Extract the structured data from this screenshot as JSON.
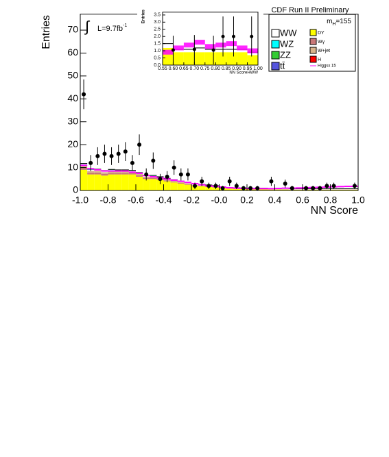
{
  "chart_data": [
    {
      "type": "histogram",
      "x_label": "NN Score",
      "y_label": "Entries",
      "header": "CDF Run II Preliminary",
      "mass_label": {
        "text": "m",
        "sub": "H",
        "rest": "=155"
      },
      "lumi": {
        "symbol": "∫",
        "text": "L=9.7fb",
        "sup": "-1"
      },
      "xlim": [
        -1,
        1
      ],
      "ylim": [
        0,
        77
      ],
      "xticks": [
        {
          "value": -1,
          "label": "-1.0"
        },
        {
          "value": -0.8,
          "label": "-0.8"
        },
        {
          "value": -0.6,
          "label": "-0.6"
        },
        {
          "value": -0.4,
          "label": "-0.4"
        },
        {
          "value": -0.2,
          "label": "-0.2"
        },
        {
          "value": 0,
          "label": "-0.0"
        },
        {
          "value": 0.2,
          "label": "0.2"
        },
        {
          "value": 0.4,
          "label": "0.4"
        },
        {
          "value": 0.6,
          "label": "0.6"
        },
        {
          "value": 0.8,
          "label": "0.8"
        },
        {
          "value": 1,
          "label": "1.0"
        }
      ],
      "yticks": [
        0,
        10,
        20,
        30,
        40,
        50,
        60,
        70
      ],
      "bins": [
        -1,
        -0.95,
        -0.9,
        -0.85,
        -0.8,
        -0.75,
        -0.7,
        -0.65,
        -0.6,
        -0.55,
        -0.5,
        -0.45,
        -0.4,
        -0.35,
        -0.3,
        -0.25,
        -0.2,
        -0.15,
        -0.1,
        -0.05,
        0,
        0.05,
        0.1,
        0.15,
        0.2,
        0.25,
        0.3,
        0.35,
        0.4,
        0.45,
        0.5,
        0.55,
        0.6,
        0.65,
        0.7,
        0.75,
        0.8,
        0.85,
        0.9,
        0.95,
        1
      ],
      "series": [
        {
          "name": "DY",
          "color": "#ffff00",
          "values": [
            9,
            7,
            7,
            6.5,
            7,
            7,
            7,
            7,
            6,
            5,
            5,
            4.5,
            4,
            3.5,
            3,
            2.5,
            2,
            1.8,
            1.5,
            1.2,
            1,
            0.8,
            0.7,
            0.6,
            0.5,
            0.5,
            0.5,
            0.4,
            0.4,
            0.4,
            0.3,
            0.3,
            0.3,
            0.3,
            0.3,
            0.3,
            0.3,
            0.3,
            0.3,
            0.3
          ]
        },
        {
          "name": "Wγ",
          "color": "#c87878",
          "values": [
            1,
            0.8,
            0.8,
            0.7,
            0.7,
            0.7,
            0.7,
            0.6,
            0.6,
            0.5,
            0.5,
            0.4,
            0.4,
            0.3,
            0.3,
            0.3,
            0.2,
            0.2,
            0.2,
            0.2,
            0.1,
            0.1,
            0.1,
            0.1,
            0.1,
            0.1,
            0.1,
            0.1,
            0.1,
            0.1,
            0.1,
            0.1,
            0.1,
            0.1,
            0.1,
            0.1,
            0.1,
            0.1,
            0.1,
            0.1
          ]
        },
        {
          "name": "W+jet",
          "color": "#d8b48c",
          "values": [
            1,
            0.8,
            0.8,
            0.8,
            0.8,
            0.7,
            0.7,
            0.6,
            0.6,
            0.5,
            0.5,
            0.5,
            0.4,
            0.4,
            0.3,
            0.3,
            0.3,
            0.2,
            0.2,
            0.2,
            0.1,
            0.1,
            0.1,
            0.1,
            0.1,
            0.1,
            0.1,
            0.1,
            0.1,
            0.1,
            0.1,
            0.1,
            0.1,
            0.1,
            0.1,
            0.1,
            0.1,
            0.1,
            0.1,
            0.1
          ]
        },
        {
          "name": "WW",
          "color": "#ffffff",
          "values": [
            0.5,
            0.4,
            0.4,
            0.4,
            0.4,
            0.3,
            0.3,
            0.3,
            0.3,
            0.3,
            0.3,
            0.3,
            0.2,
            0.2,
            0.2,
            0.2,
            0.2,
            0.2,
            0.2,
            0.2,
            0.1,
            0.1,
            0.1,
            0.1,
            0.1,
            0.1,
            0.1,
            0.1,
            0.1,
            0.1,
            0.1,
            0.1,
            0.1,
            0.1,
            0.1,
            0.1,
            0.1,
            0.1,
            0.1,
            0.1
          ]
        },
        {
          "name": "WZ",
          "color": "#00ffff",
          "values": [
            0.1,
            0.1,
            0.1,
            0.1,
            0.1,
            0.1,
            0.1,
            0.1,
            0.1,
            0.1,
            0.1,
            0.1,
            0.1,
            0.1,
            0.1,
            0.1,
            0.1,
            0.1,
            0.1,
            0.1,
            0.05,
            0.05,
            0.05,
            0.05,
            0.05,
            0.05,
            0.05,
            0.05,
            0.05,
            0.05,
            0.05,
            0.05,
            0.05,
            0.05,
            0.05,
            0.05,
            0.05,
            0.05,
            0.05,
            0.05
          ]
        },
        {
          "name": "ZZ",
          "color": "#33cc33",
          "values": [
            0.1,
            0.1,
            0.1,
            0.1,
            0.1,
            0.1,
            0.1,
            0.1,
            0.1,
            0.1,
            0.1,
            0.1,
            0.1,
            0.1,
            0.1,
            0.1,
            0.1,
            0.1,
            0.1,
            0.1,
            0.05,
            0.05,
            0.05,
            0.05,
            0.05,
            0.05,
            0.05,
            0.05,
            0.05,
            0.05,
            0.05,
            0.05,
            0.05,
            0.05,
            0.05,
            0.05,
            0.05,
            0.05,
            0.05,
            0.05
          ]
        },
        {
          "name": "tt̄",
          "color": "#5555dd",
          "values": [
            0.05,
            0.05,
            0.05,
            0.05,
            0.05,
            0.05,
            0.05,
            0.05,
            0.05,
            0.05,
            0.05,
            0.05,
            0.05,
            0.05,
            0.05,
            0.05,
            0.05,
            0.05,
            0.05,
            0.05,
            0.05,
            0.05,
            0.05,
            0.05,
            0.05,
            0.05,
            0.05,
            0.05,
            0.05,
            0.05,
            0.05,
            0.05,
            0.05,
            0.05,
            0.05,
            0.05,
            0.05,
            0.05,
            0.05,
            0.05
          ]
        },
        {
          "name": "H",
          "color": "#ff0000",
          "values": [
            0.05,
            0.05,
            0.05,
            0.05,
            0.05,
            0.05,
            0.05,
            0.05,
            0.05,
            0.05,
            0.05,
            0.05,
            0.05,
            0.05,
            0.05,
            0.05,
            0.05,
            0.05,
            0.05,
            0.05,
            0.05,
            0.05,
            0.05,
            0.05,
            0.05,
            0.05,
            0.05,
            0.05,
            0.05,
            0.05,
            0.05,
            0.05,
            0.05,
            0.05,
            0.05,
            0.05,
            0.05,
            0.05,
            0.05,
            0.05
          ]
        }
      ],
      "signal": {
        "name": "Higgsx 15",
        "color": "#ff00ff",
        "values": [
          11,
          9.5,
          9,
          8.5,
          8.5,
          8.5,
          8.5,
          8,
          7.5,
          6.5,
          6,
          5.5,
          5,
          4.5,
          4,
          3.5,
          3,
          2.5,
          2,
          1.8,
          1.5,
          1.2,
          1,
          0.9,
          0.8,
          0.8,
          0.8,
          0.8,
          0.9,
          1,
          1,
          1.1,
          1.2,
          1.3,
          1.4,
          1.5,
          1.6,
          1.7,
          1.8,
          1.8
        ]
      },
      "data": {
        "color": "#000000",
        "values": [
          42,
          12,
          15,
          16,
          15,
          16,
          17,
          12,
          20,
          7,
          13,
          5,
          6,
          10,
          7,
          7,
          2,
          4,
          2,
          2,
          1,
          4,
          2,
          1,
          1,
          1,
          null,
          4,
          null,
          3,
          1,
          null,
          1,
          1,
          1,
          2,
          2,
          null,
          null,
          2
        ]
      }
    },
    {
      "type": "histogram",
      "x_label": "NN ScoreHWW",
      "y_label": "Entries",
      "xlim": [
        0.55,
        1
      ],
      "ylim": [
        0,
        3.7
      ],
      "xticks": [
        0.55,
        {
          "value": 0.6,
          "label": "0.60"
        },
        0.65,
        {
          "value": 0.7,
          "label": "0.70"
        },
        0.75,
        {
          "value": 0.8,
          "label": "0.80"
        },
        0.85,
        {
          "value": 0.9,
          "label": "0.90"
        },
        0.95,
        {
          "value": 1,
          "label": "1.00"
        }
      ],
      "yticks": [
        {
          "value": 0,
          "label": "0.0"
        },
        0.5,
        {
          "value": 1,
          "label": "1.0"
        },
        1.5,
        {
          "value": 2,
          "label": "2.0"
        },
        2.5,
        {
          "value": 3,
          "label": "3.0"
        },
        3.5
      ],
      "bins": [
        0.55,
        0.6,
        0.65,
        0.7,
        0.75,
        0.8,
        0.85,
        0.9,
        0.95,
        1
      ],
      "series": [
        {
          "name": "DY",
          "color": "#ffff00",
          "values": [
            1.2,
            0.9,
            0.9,
            0.9,
            0.9,
            0.9,
            0.9,
            0.9,
            0.7
          ]
        },
        {
          "name": "WW",
          "color": "#ffffff",
          "values": [
            0.3,
            0.2,
            0.2,
            0.3,
            0.2,
            0.2,
            0.2,
            0.2,
            0.2
          ]
        }
      ],
      "signal": {
        "name": "Higgsx 15",
        "color": "#ff00ff",
        "values": [
          0.9,
          1.2,
          1.4,
          1.6,
          1.3,
          1.4,
          1.5,
          1.2,
          1.0
        ]
      },
      "data": {
        "color": "#000000",
        "x": [
          0.6,
          0.7,
          0.79,
          0.835,
          0.885,
          0.97
        ],
        "values": [
          1.05,
          1.1,
          1.05,
          2,
          2,
          2
        ],
        "errors": [
          1,
          1,
          1,
          1.4,
          1.4,
          1.4
        ]
      }
    }
  ]
}
